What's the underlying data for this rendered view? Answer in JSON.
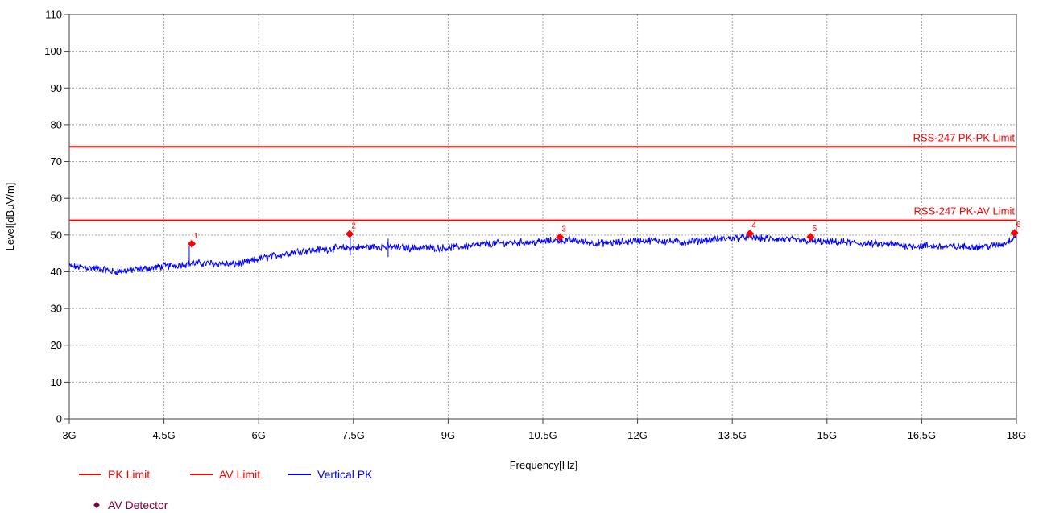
{
  "chart_data": {
    "type": "line",
    "xlabel": "Frequency[Hz]",
    "ylabel": "Level[dBµV/m]",
    "xlim": [
      3,
      18
    ],
    "ylim": [
      0,
      110
    ],
    "x_unit": "GHz",
    "x_ticks": [
      3,
      4.5,
      6,
      7.5,
      9,
      10.5,
      12,
      13.5,
      15,
      16.5,
      18
    ],
    "x_tick_labels": [
      "3G",
      "4.5G",
      "6G",
      "7.5G",
      "9G",
      "10.5G",
      "12G",
      "13.5G",
      "15G",
      "16.5G",
      "18G"
    ],
    "y_ticks": [
      0,
      10,
      20,
      30,
      40,
      50,
      60,
      70,
      80,
      90,
      100,
      110
    ],
    "y_tick_labels": [
      "0",
      "10",
      "20",
      "30",
      "40",
      "50",
      "60",
      "70",
      "80",
      "90",
      "100",
      "110"
    ],
    "grid": true,
    "colors": {
      "limit": "#ff0000",
      "trace": "#0000ff",
      "detector": "#800040",
      "marker": "#ff0000"
    },
    "limits": [
      {
        "name": "PK Limit",
        "y": 74,
        "label": "RSS-247 PK-PK Limit"
      },
      {
        "name": "AV Limit",
        "y": 54,
        "label": "RSS-247 PK-AV Limit"
      }
    ],
    "series": [
      {
        "name": "Vertical PK",
        "x": [
          3.0,
          3.5,
          3.7,
          4.0,
          4.3,
          4.5,
          4.8,
          5.0,
          5.3,
          5.6,
          5.8,
          6.0,
          6.3,
          6.6,
          7.0,
          7.3,
          7.5,
          7.8,
          8.0,
          8.3,
          8.6,
          9.0,
          9.3,
          9.6,
          10.0,
          10.3,
          10.7,
          11.0,
          11.3,
          11.6,
          12.0,
          12.3,
          12.7,
          13.0,
          13.4,
          13.7,
          14.0,
          14.3,
          14.6,
          15.0,
          15.3,
          15.7,
          16.0,
          16.3,
          16.6,
          17.0,
          17.3,
          17.6,
          17.8,
          18.0
        ],
        "y": [
          41.5,
          40.8,
          40.0,
          40.5,
          41.0,
          41.5,
          42.0,
          42.3,
          42.3,
          42.0,
          42.5,
          43.5,
          44.5,
          45.5,
          46.0,
          46.5,
          46.5,
          46.8,
          46.8,
          46.5,
          46.5,
          46.5,
          47.0,
          47.5,
          48.0,
          48.0,
          48.5,
          48.5,
          47.8,
          47.8,
          48.5,
          48.5,
          48.0,
          48.5,
          49.0,
          49.5,
          49.0,
          48.8,
          48.5,
          48.0,
          48.0,
          47.5,
          47.5,
          47.0,
          47.0,
          46.8,
          46.8,
          47.0,
          47.5,
          50.0
        ]
      }
    ],
    "spikes": [
      {
        "x": 4.9,
        "y": 47.0
      },
      {
        "x": 7.45,
        "y": 49.5
      },
      {
        "x": 8.05,
        "y": 49.0
      }
    ],
    "markers": [
      {
        "label": "1",
        "x": 4.94,
        "y": 47.6
      },
      {
        "label": "2",
        "x": 7.44,
        "y": 50.3
      },
      {
        "label": "3",
        "x": 10.77,
        "y": 49.4
      },
      {
        "label": "4",
        "x": 13.78,
        "y": 50.4
      },
      {
        "label": "5",
        "x": 14.74,
        "y": 49.5
      },
      {
        "label": "6",
        "x": 17.97,
        "y": 50.6
      }
    ],
    "legend": [
      {
        "label": "PK Limit",
        "color": "#ff0000",
        "kind": "line"
      },
      {
        "label": "AV Limit",
        "color": "#ff0000",
        "kind": "line"
      },
      {
        "label": "Vertical PK",
        "color": "#0000ff",
        "kind": "line"
      },
      {
        "label": "AV Detector",
        "color": "#800040",
        "kind": "diamond"
      }
    ],
    "legend_position": "bottom-left"
  }
}
